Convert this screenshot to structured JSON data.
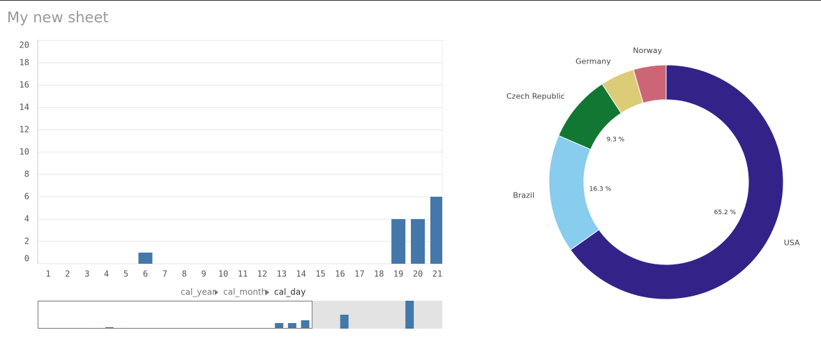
{
  "sheet_title": "My new sheet",
  "breadcrumb": [
    "cal_year",
    "cal_month",
    "cal_day"
  ],
  "chart_data": [
    {
      "type": "bar",
      "color": "#4477aa",
      "grid": true,
      "categories": [
        "1",
        "2",
        "3",
        "4",
        "5",
        "6",
        "7",
        "8",
        "9",
        "10",
        "11",
        "12",
        "13",
        "14",
        "15",
        "16",
        "17",
        "18",
        "19",
        "20",
        "21"
      ],
      "values": [
        0,
        0,
        0,
        0,
        0,
        1,
        0,
        0,
        0,
        0,
        0,
        0,
        0,
        0,
        0,
        0,
        0,
        0,
        4,
        4,
        6
      ],
      "ylim": [
        0,
        20
      ],
      "yticks": [
        0,
        2,
        4,
        6,
        8,
        10,
        12,
        14,
        16,
        18,
        20
      ]
    },
    {
      "type": "navigator",
      "color": "#4477aa",
      "values": [
        0,
        0,
        0,
        0,
        0,
        1,
        0,
        0,
        0,
        0,
        0,
        0,
        0,
        0,
        0,
        0,
        0,
        0,
        4,
        4,
        6,
        0,
        0,
        10,
        0,
        0,
        0,
        0,
        20,
        0,
        0
      ],
      "ylim": [
        0,
        20
      ]
    },
    {
      "type": "donut",
      "categories": [
        "USA",
        "Brazil",
        "Czech Republic",
        "Germany",
        "Norway"
      ],
      "values": [
        65.2,
        16.3,
        9.3,
        4.7,
        4.5
      ],
      "value_labels": [
        "65.2 %",
        "16.3 %",
        "9.3 %",
        null,
        null
      ],
      "colors": [
        "#332288",
        "#88ccee",
        "#117733",
        "#ddcc77",
        "#cc6677"
      ]
    }
  ]
}
